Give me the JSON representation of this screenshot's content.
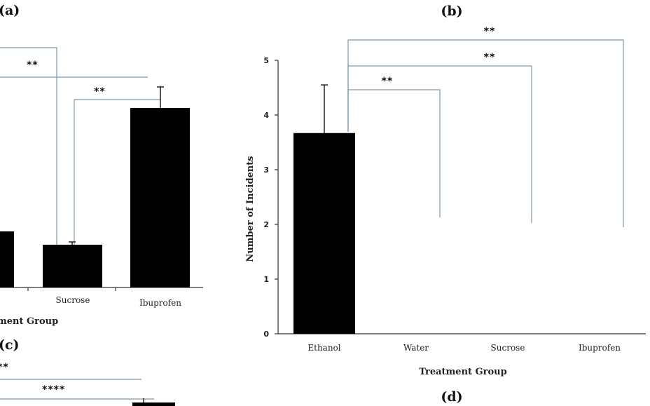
{
  "panel_labels": {
    "a": "(a)",
    "b": "(b)",
    "c": "(c)",
    "d": "(d)"
  },
  "chart_data": [
    {
      "panel": "(a)",
      "type": "bar",
      "categories": [
        "Sucrose",
        "Ibuprofen"
      ],
      "values": [
        null,
        null
      ],
      "xlabel_fragment": "ment Group",
      "significance": [
        "**",
        "**"
      ],
      "note": "partially cropped panel; values not readable"
    },
    {
      "panel": "(b)",
      "type": "bar",
      "categories": [
        "Ethanol",
        "Water",
        "Sucrose",
        "Ibuprofen"
      ],
      "values": [
        3.67,
        0,
        0,
        0
      ],
      "errors": [
        0.88,
        0,
        0,
        0
      ],
      "xlabel": "Treatment Group",
      "ylabel": "Number of Incidents",
      "ylim": [
        0,
        5
      ],
      "yticks": [
        "0",
        "1",
        "2",
        "3",
        "4",
        "5"
      ],
      "grid": false,
      "significance": [
        {
          "label": "**",
          "from": "Ethanol",
          "to": "Water"
        },
        {
          "label": "**",
          "from": "Ethanol",
          "to": "Sucrose"
        },
        {
          "label": "**",
          "from": "Ethanol",
          "to": "Ibuprofen"
        }
      ]
    },
    {
      "panel": "(c)",
      "type": "bar",
      "categories": [],
      "values": [],
      "significance": [
        "**",
        "****"
      ],
      "note": "cropped panel"
    }
  ],
  "colors": {
    "bar": "#000000",
    "bracket": "#7f97a8",
    "axis": "#333333"
  }
}
